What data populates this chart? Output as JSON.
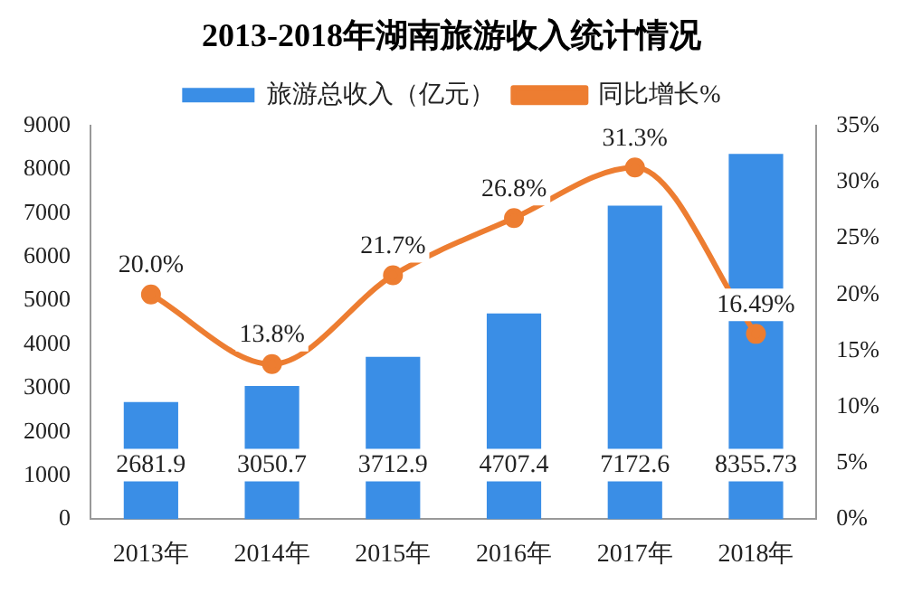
{
  "chart_data": {
    "type": "bar",
    "title": "2013-2018年湖南旅游收入统计情况",
    "categories": [
      "2013年",
      "2014年",
      "2015年",
      "2016年",
      "2017年",
      "2018年"
    ],
    "series": [
      {
        "name": "旅游总收入（亿元）",
        "color": "#3a8ee6",
        "values": [
          2681.9,
          3050.7,
          3712.9,
          4707.4,
          7172.6,
          8355.73
        ]
      },
      {
        "name": "同比增长%",
        "type": "line",
        "axis": "y2",
        "color": "#ed7d31",
        "values": [
          20.0,
          13.8,
          21.7,
          26.8,
          31.3,
          16.49
        ],
        "value_labels": [
          "20.0%",
          "13.8%",
          "21.7%",
          "26.8%",
          "31.3%",
          "16.49%"
        ]
      }
    ],
    "ylim": [
      0,
      9000
    ],
    "yticks": [
      0,
      1000,
      2000,
      3000,
      4000,
      5000,
      6000,
      7000,
      8000,
      9000
    ],
    "y2lim": [
      0,
      35
    ],
    "y2ticks": [
      {
        "value": 0,
        "label": "0%"
      },
      {
        "value": 5,
        "label": "5%"
      },
      {
        "value": 10,
        "label": "10%"
      },
      {
        "value": 15,
        "label": "15%"
      },
      {
        "value": 20,
        "label": "20%"
      },
      {
        "value": 25,
        "label": "25%"
      },
      {
        "value": 30,
        "label": "30%"
      },
      {
        "value": 35,
        "label": "35%"
      }
    ],
    "data_labels": true,
    "legend": "top",
    "grid": false,
    "marker": "circle",
    "line_style": "solid"
  }
}
